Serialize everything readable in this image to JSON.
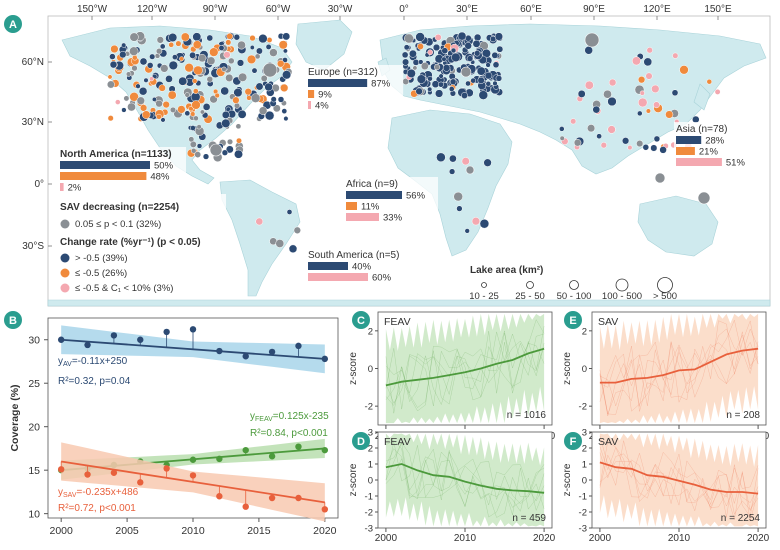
{
  "panels": {
    "a": {
      "label": "A"
    },
    "b": {
      "label": "B"
    },
    "c": {
      "label": "C"
    },
    "d": {
      "label": "D"
    },
    "e": {
      "label": "E"
    },
    "f": {
      "label": "F"
    }
  },
  "map": {
    "lon_ticks": [
      "150°W",
      "120°W",
      "90°W",
      "60°W",
      "30°W",
      "0°",
      "30°E",
      "60°E",
      "90°E",
      "120°E",
      "150°E"
    ],
    "lat_ticks": [
      "60°N",
      "30°N",
      "0°",
      "30°S"
    ],
    "colors": {
      "decreasing_grey": "#8a8f94",
      "gt_neg05": "#2c4a73",
      "le_neg05": "#f08a3c",
      "le_neg05_c1": "#f4a8b0",
      "land": "#cfeaee"
    },
    "regions": [
      {
        "name": "North America (n=1133)",
        "values": [
          50,
          48,
          2
        ],
        "labels": [
          "50%",
          "48%",
          "2%"
        ]
      },
      {
        "name": "Europe (n=312)",
        "values": [
          87,
          9,
          4
        ],
        "labels": [
          "87%",
          "9%",
          "4%"
        ]
      },
      {
        "name": "Africa (n=9)",
        "values": [
          56,
          11,
          33
        ],
        "labels": [
          "56%",
          "11%",
          "33%"
        ]
      },
      {
        "name": "South America (n=5)",
        "values": [
          40,
          0,
          60
        ],
        "labels": [
          "40%",
          "",
          "60%"
        ]
      },
      {
        "name": "Asia (n=78)",
        "values": [
          28,
          21,
          51
        ],
        "labels": [
          "28%",
          "21%",
          "51%"
        ]
      }
    ],
    "legend": {
      "sav_title": "SAV decreasing (n=2254)",
      "sav_item": "0.05 ≤ p < 0.1 (32%)",
      "change_title": "Change rate (%yr⁻¹) (p < 0.05)",
      "items": [
        "> -0.5 (39%)",
        "≤ -0.5 (26%)",
        "≤ -0.5 & C₁ < 10% (3%)"
      ]
    },
    "lake_area": {
      "title": "Lake area (km²)",
      "sizes": [
        "10 - 25",
        "25 - 50",
        "50 - 100",
        "100 - 500",
        "> 500"
      ]
    }
  },
  "chart_data": [
    {
      "id": "B",
      "type": "scatter",
      "ylabel": "Coverage (%)",
      "xlim": [
        1999,
        2021
      ],
      "ylim": [
        9.5,
        32.5
      ],
      "x_ticks": [
        2000,
        2005,
        2010,
        2015,
        2020
      ],
      "y_ticks": [
        10,
        15,
        20,
        25,
        30
      ],
      "series": [
        {
          "name": "AV",
          "color": "#2c4a73",
          "band": "#a8d5ea",
          "x": [
            2000,
            2002,
            2004,
            2006,
            2008,
            2010,
            2012,
            2014,
            2016,
            2018,
            2020
          ],
          "y": [
            30.0,
            29.4,
            30.5,
            30.0,
            30.9,
            31.2,
            28.7,
            28.1,
            28.6,
            29.3,
            27.8
          ],
          "fit": {
            "slope": -0.11,
            "intercept": 250
          },
          "eq": "y",
          "eq_sub": "AV",
          "eq_rest": "=-0.11x+250",
          "stats": "R²=0.32, p=0.04"
        },
        {
          "name": "FEAV",
          "color": "#4c9a3c",
          "band": "#b8deae",
          "x": [
            2000,
            2002,
            2004,
            2006,
            2008,
            2010,
            2012,
            2014,
            2016,
            2018,
            2020
          ],
          "y": [
            15.0,
            15.2,
            15.6,
            16.0,
            15.6,
            16.2,
            16.3,
            17.3,
            16.6,
            17.7,
            17.3
          ],
          "fit": {
            "slope": 0.125,
            "intercept": -235
          },
          "eq": "y",
          "eq_sub": "FEAV",
          "eq_rest": "=0.125x-235",
          "stats": "R²=0.84, p<0.001"
        },
        {
          "name": "SAV",
          "color": "#e8603c",
          "band": "#f8c9b0",
          "x": [
            2000,
            2002,
            2004,
            2006,
            2008,
            2010,
            2012,
            2014,
            2016,
            2018,
            2020
          ],
          "y": [
            15.1,
            14.5,
            14.7,
            13.6,
            15.2,
            14.4,
            12.0,
            10.8,
            11.8,
            11.8,
            10.5
          ],
          "fit": {
            "slope": -0.235,
            "intercept": 486
          },
          "eq": "y",
          "eq_sub": "SAV",
          "eq_rest": "=-0.235x+486",
          "stats": "R²=0.72, p<0.001"
        }
      ]
    },
    {
      "id": "C",
      "type": "line",
      "title": "FEAV",
      "ylabel": "z-score",
      "n": "n = 1016",
      "color": "#4c9a3c",
      "band": "#cfe9c8",
      "x": [
        2000,
        2002,
        2004,
        2006,
        2008,
        2010,
        2012,
        2014,
        2016,
        2018,
        2020
      ],
      "y": [
        -0.9,
        -0.7,
        -0.6,
        -0.5,
        -0.35,
        -0.2,
        0.0,
        0.25,
        0.45,
        0.8,
        1.05
      ],
      "ylim": [
        -3,
        3
      ],
      "y_ticks": [
        -2,
        0,
        2
      ],
      "x_ticks": [
        2000,
        2010,
        2020
      ]
    },
    {
      "id": "D",
      "type": "line",
      "title": "FEAV",
      "ylabel": "z-score",
      "n": "n = 459",
      "color": "#4c9a3c",
      "band": "#cfe9c8",
      "x": [
        2000,
        2002,
        2004,
        2006,
        2008,
        2010,
        2012,
        2014,
        2016,
        2018,
        2020
      ],
      "y": [
        0.8,
        1.0,
        0.6,
        0.3,
        0.2,
        -0.1,
        -0.35,
        -0.55,
        -0.65,
        -0.7,
        -0.8
      ],
      "ylim": [
        -3,
        3
      ],
      "y_ticks": [
        -3,
        -2,
        -1,
        0,
        1,
        2,
        3
      ],
      "x_ticks": [
        2000,
        2010,
        2020
      ]
    },
    {
      "id": "E",
      "type": "line",
      "title": "SAV",
      "ylabel": "z-score",
      "n": "n = 208",
      "color": "#e8603c",
      "band": "#fbdcc8",
      "x": [
        2000,
        2002,
        2004,
        2006,
        2008,
        2010,
        2012,
        2014,
        2016,
        2018,
        2020
      ],
      "y": [
        -0.75,
        -0.75,
        -0.55,
        -0.5,
        -0.35,
        -0.1,
        -0.05,
        0.35,
        0.75,
        0.95,
        1.05
      ],
      "ylim": [
        -3,
        3
      ],
      "y_ticks": [
        -2,
        0,
        2
      ],
      "x_ticks": [
        2000,
        2010,
        2020
      ]
    },
    {
      "id": "F",
      "type": "line",
      "title": "SAV",
      "ylabel": "z-score",
      "n": "n = 2254",
      "color": "#e8603c",
      "band": "#fbdcc8",
      "x": [
        2000,
        2002,
        2004,
        2006,
        2008,
        2010,
        2012,
        2014,
        2016,
        2018,
        2020
      ],
      "y": [
        1.1,
        0.8,
        0.7,
        0.3,
        0.2,
        -0.05,
        -0.3,
        -0.6,
        -0.75,
        -0.75,
        -0.85
      ],
      "ylim": [
        -3,
        3
      ],
      "y_ticks": [
        -3,
        -2,
        -1,
        0,
        1,
        2,
        3
      ],
      "x_ticks": [
        2000,
        2010,
        2020
      ]
    }
  ]
}
